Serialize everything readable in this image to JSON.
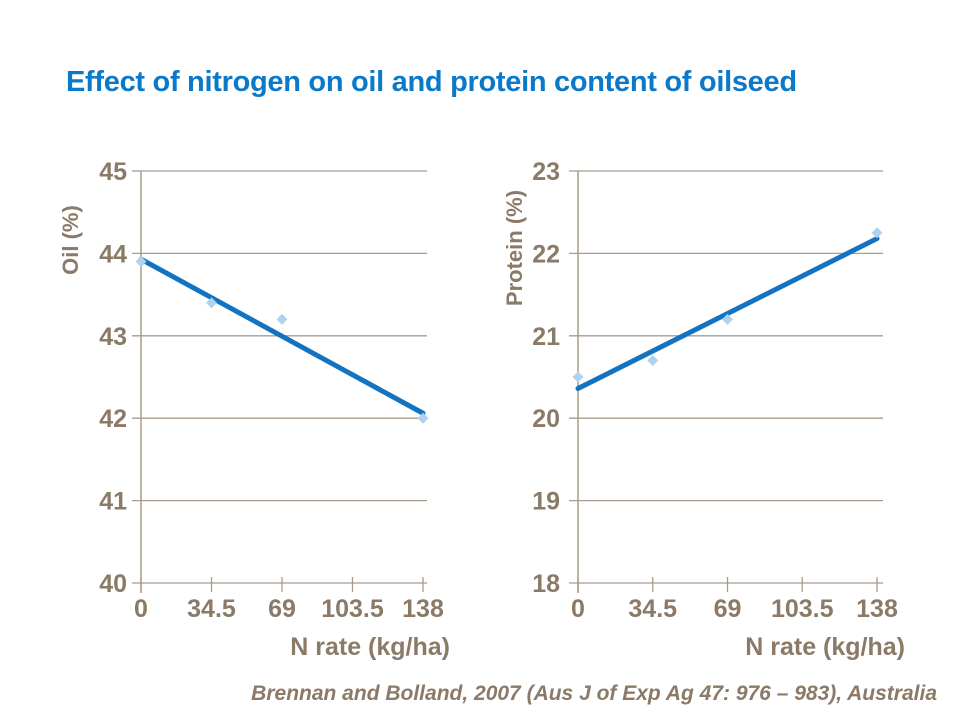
{
  "slide": {
    "title": "Effect of nitrogen on oil and protein content of oilseed",
    "citation": "Brennan and Bolland, 2007 (Aus J of Exp Ag 47: 976 – 983), Australia"
  },
  "colors": {
    "title_blue": "#0b79c9",
    "trend_blue": "#1373c1",
    "marker_blue": "#aed2f0",
    "grid_taupe": "#a99c8c",
    "text_brown": "#8a7a67",
    "background": "#ffffff"
  },
  "chart_data": [
    {
      "id": "oil",
      "type": "scatter",
      "title": "",
      "xlabel": "N rate (kg/ha)",
      "ylabel": "Oil (%)",
      "x": [
        0,
        34.5,
        69,
        138
      ],
      "y": [
        43.9,
        43.4,
        43.2,
        42.0
      ],
      "xlim": [
        0,
        138
      ],
      "ylim": [
        40,
        45
      ],
      "x_tick_values": [
        0,
        34.5,
        69,
        103.5,
        138
      ],
      "x_tick_labels": [
        "0",
        "34.5",
        "69",
        "103.5",
        "138"
      ],
      "y_tick_values": [
        40,
        41,
        42,
        43,
        44,
        45
      ],
      "y_tick_labels": [
        "40",
        "41",
        "42",
        "43",
        "44",
        "45"
      ],
      "trendline": {
        "x": [
          0,
          138
        ],
        "y": [
          43.93,
          42.06
        ]
      },
      "grid": "horizontal",
      "legend": "none"
    },
    {
      "id": "protein",
      "type": "scatter",
      "title": "",
      "xlabel": "N rate (kg/ha)",
      "ylabel": "Protein  (%)",
      "x": [
        0,
        34.5,
        69,
        138
      ],
      "y": [
        20.5,
        20.7,
        21.2,
        22.25
      ],
      "xlim": [
        0,
        138
      ],
      "ylim": [
        18,
        23
      ],
      "x_tick_values": [
        0,
        34.5,
        69,
        103.5,
        138
      ],
      "x_tick_labels": [
        "0",
        "34.5",
        "69",
        "103.5",
        "138"
      ],
      "y_tick_values": [
        18,
        19,
        20,
        21,
        22,
        23
      ],
      "y_tick_labels": [
        "18",
        "19",
        "20",
        "21",
        "22",
        "23"
      ],
      "trendline": {
        "x": [
          0,
          138
        ],
        "y": [
          20.36,
          22.18
        ]
      },
      "grid": "horizontal",
      "legend": "none"
    }
  ]
}
